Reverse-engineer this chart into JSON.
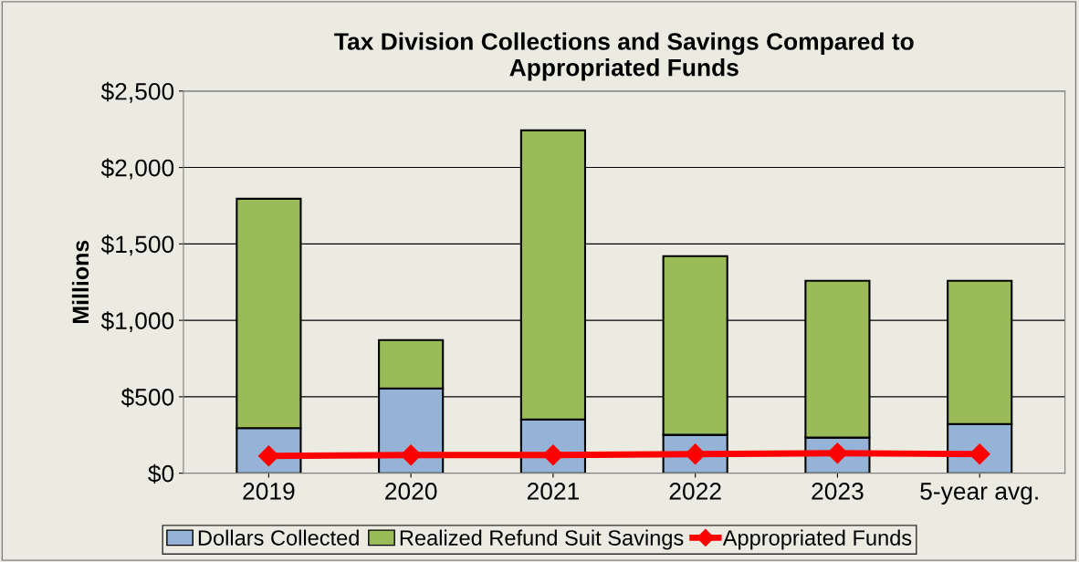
{
  "chart_data": {
    "type": "bar",
    "stacked": true,
    "title": "Tax Division Collections and Savings Compared to\nAppropriated Funds",
    "ylabel": "Millions",
    "categories": [
      "2019",
      "2020",
      "2021",
      "2022",
      "2023",
      "5-year avg."
    ],
    "series": [
      {
        "name": "Dollars Collected",
        "color": "#95b3d7",
        "values": [
          295,
          555,
          352,
          251,
          233,
          322
        ]
      },
      {
        "name": "Realized Refund Suit Savings",
        "color": "#9bbb59",
        "values": [
          1500,
          316,
          1891,
          1169,
          1026,
          937
        ]
      },
      {
        "name": "Appropriated Funds",
        "type": "line",
        "color": "#ff0000",
        "marker": "diamond",
        "values": [
          113,
          119,
          119,
          125,
          131,
          125
        ]
      }
    ],
    "ylim": [
      0,
      2500
    ],
    "yticks": [
      {
        "value": 0,
        "label": "$0"
      },
      {
        "value": 500,
        "label": "$500"
      },
      {
        "value": 1000,
        "label": "$1,000"
      },
      {
        "value": 1500,
        "label": "$1,500"
      },
      {
        "value": 2000,
        "label": "$2,000"
      },
      {
        "value": 2500,
        "label": "$2,500"
      }
    ],
    "grid": "y",
    "legend": "bottom"
  }
}
